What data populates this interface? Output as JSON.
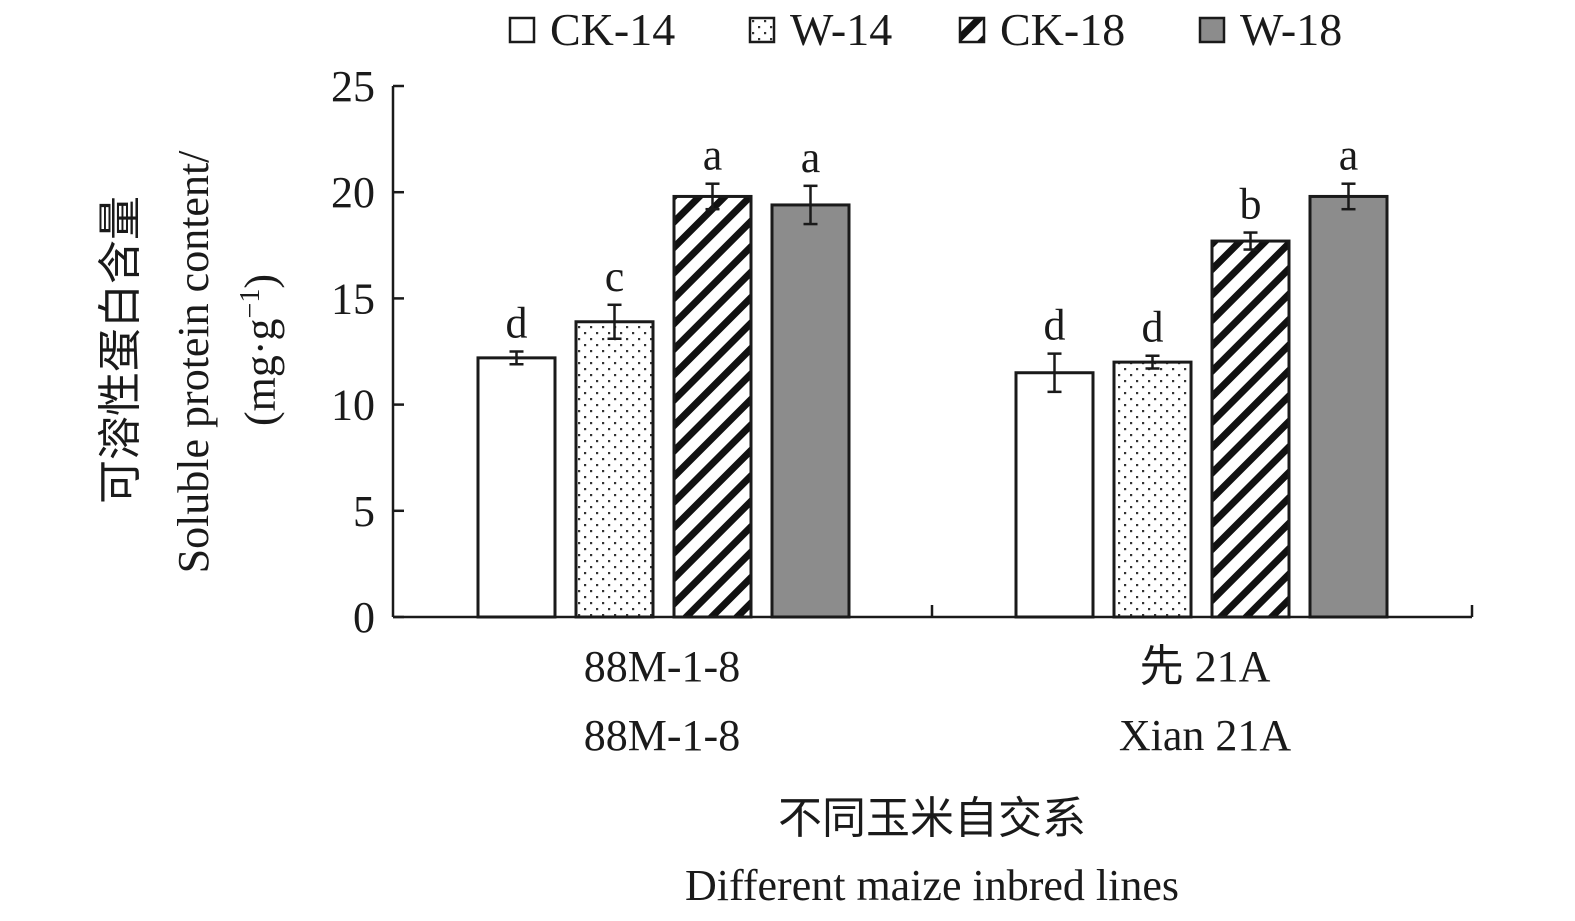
{
  "chart_data": {
    "type": "bar",
    "categories": [
      {
        "line1": "88M-1-8",
        "line2": "88M-1-8"
      },
      {
        "line1": "先 21A",
        "line2": "Xian 21A"
      }
    ],
    "series": [
      {
        "name": "CK-14",
        "pattern": "white",
        "values": [
          12.2,
          11.5
        ],
        "errors": [
          0.3,
          0.9
        ],
        "letters": [
          "d",
          "d"
        ]
      },
      {
        "name": "W-14",
        "pattern": "dots",
        "values": [
          13.9,
          12.0
        ],
        "errors": [
          0.8,
          0.3
        ],
        "letters": [
          "c",
          "d"
        ]
      },
      {
        "name": "CK-18",
        "pattern": "hatch",
        "values": [
          19.8,
          17.7
        ],
        "errors": [
          0.6,
          0.4
        ],
        "letters": [
          "a",
          "b"
        ]
      },
      {
        "name": "W-18",
        "pattern": "gray",
        "values": [
          19.4,
          19.8
        ],
        "errors": [
          0.9,
          0.6
        ],
        "letters": [
          "a",
          "a"
        ]
      }
    ],
    "ylim": [
      0,
      25
    ],
    "yticks": [
      "0",
      "5",
      "10",
      "15",
      "20",
      "25"
    ],
    "ylabel_cn": "可溶性蛋白含量",
    "ylabel_en": "Soluble protein content/",
    "ylabel_unit": "(mg·g",
    "ylabel_unit_exp": "−1",
    "ylabel_unit_close": ")",
    "xlabel_cn": "不同玉米自交系",
    "xlabel_en": "Different maize inbred lines",
    "legend_position": "top",
    "grid": false,
    "colors": {
      "bar_stroke": "#1a1a1a",
      "gray_fill": "#8c8c8c",
      "white_fill": "#ffffff"
    }
  }
}
